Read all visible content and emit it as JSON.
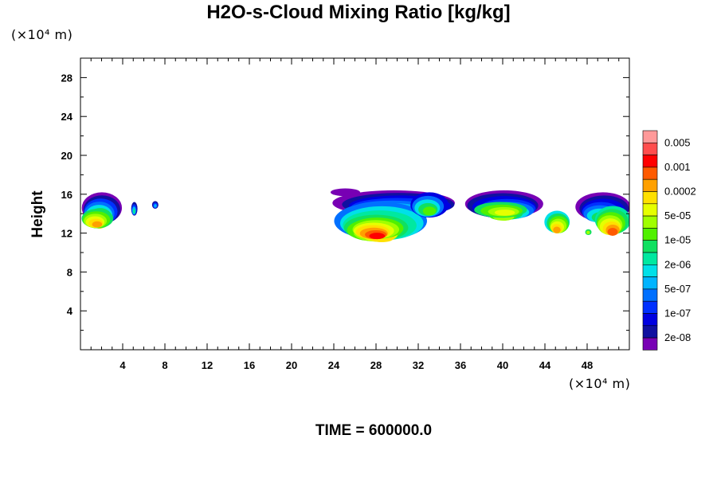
{
  "chart_data": {
    "type": "heatmap",
    "title": "H2O-s-Cloud Mixing Ratio [kg/kg]",
    "ylabel": "Height",
    "x_unit": "(×10⁴ m)",
    "y_unit": "(×10⁴ m)",
    "footer": "TIME = 600000.0",
    "xlim": [
      0,
      52
    ],
    "ylim": [
      0,
      30
    ],
    "x_ticks": [
      4,
      8,
      12,
      16,
      20,
      24,
      28,
      32,
      36,
      40,
      44,
      48
    ],
    "y_ticks": [
      4,
      8,
      12,
      16,
      20,
      24,
      28
    ],
    "colorbar": {
      "labels": [
        "0.005",
        "0.001",
        "0.0002",
        "5e-05",
        "1e-05",
        "2e-06",
        "5e-07",
        "1e-07",
        "2e-08"
      ],
      "colors": [
        "#ff9999",
        "#ff4d4d",
        "#ff0000",
        "#ff5a00",
        "#ffa000",
        "#ffe000",
        "#e6ff00",
        "#a0ff00",
        "#50f000",
        "#10e060",
        "#00e8a0",
        "#00e0e8",
        "#00b4ff",
        "#0070ff",
        "#0030ff",
        "#0000e0",
        "#1010a0",
        "#7800b4"
      ]
    },
    "cloud_regions": [
      {
        "x_range": [
          0,
          4
        ],
        "y_range": [
          12.5,
          16.2
        ],
        "level": "mid"
      },
      {
        "x_range": [
          4.8,
          5.4
        ],
        "y_range": [
          13.8,
          15.2
        ],
        "level": "low"
      },
      {
        "x_range": [
          6.8,
          7.4
        ],
        "y_range": [
          14.5,
          15.3
        ],
        "level": "low"
      },
      {
        "x_range": [
          23.8,
          35.8
        ],
        "y_range": [
          11.2,
          16.3
        ],
        "level": "high"
      },
      {
        "x_range": [
          36.6,
          44.0
        ],
        "y_range": [
          13.5,
          16.4
        ],
        "level": "mid"
      },
      {
        "x_range": [
          44.0,
          46.4
        ],
        "y_range": [
          12.0,
          14.3
        ],
        "level": "mid"
      },
      {
        "x_range": [
          46.8,
          52.0
        ],
        "y_range": [
          11.9,
          16.2
        ],
        "level": "high"
      }
    ]
  }
}
